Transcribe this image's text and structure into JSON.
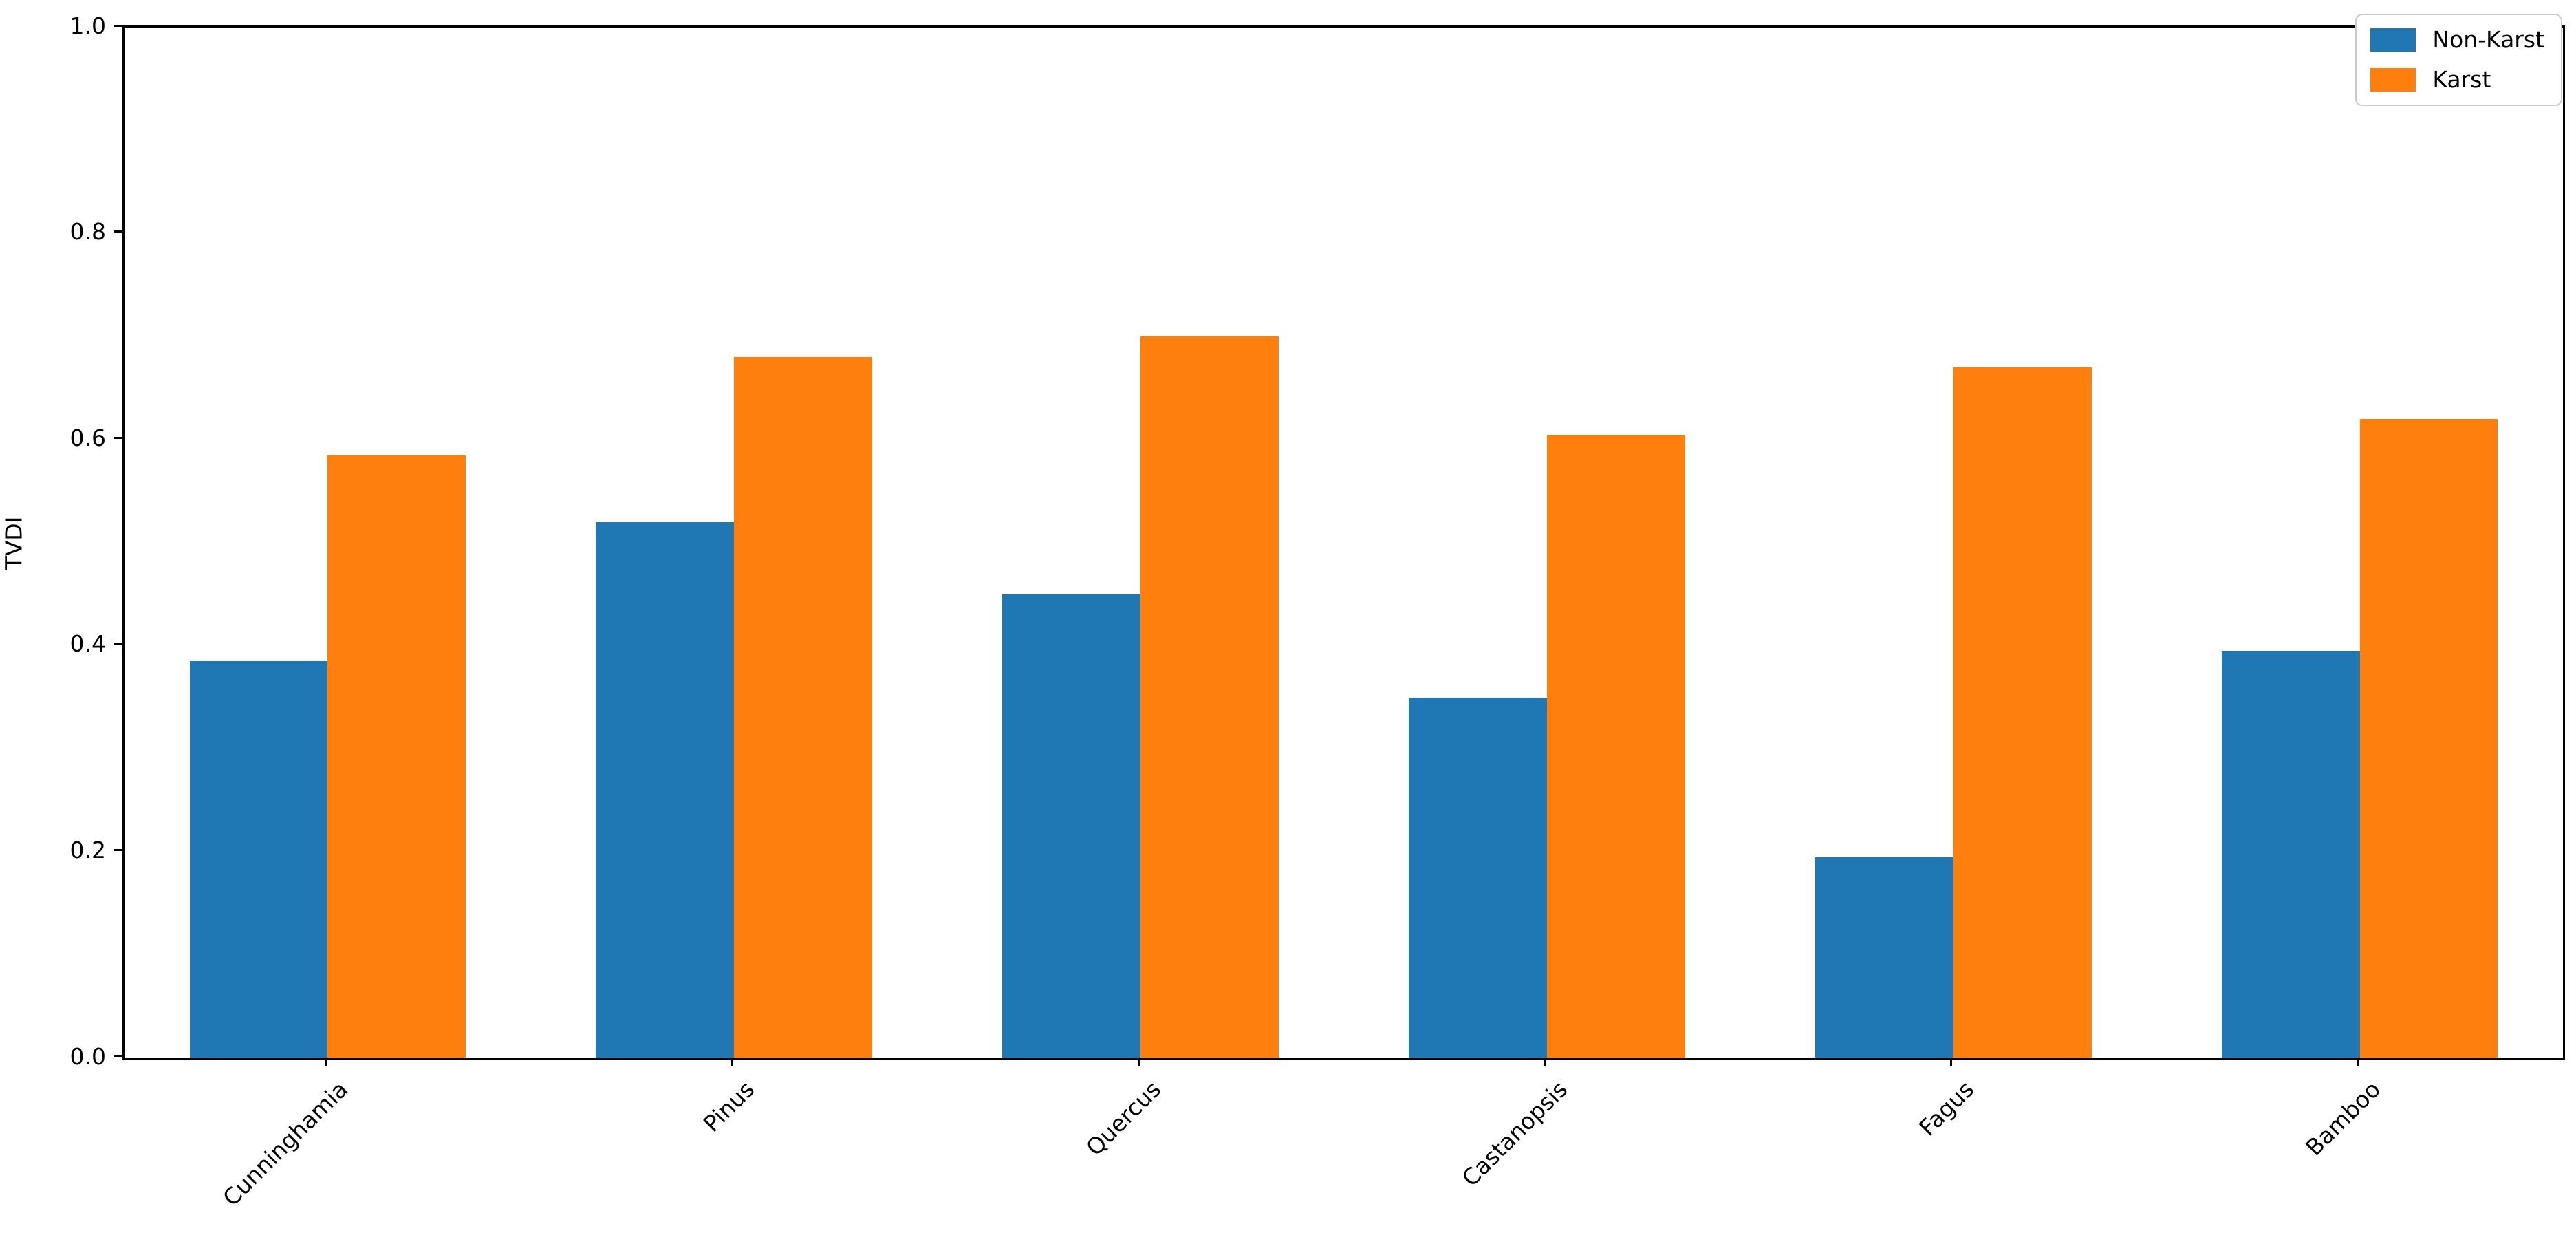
{
  "chart_data": {
    "type": "bar",
    "title": "",
    "categories": [
      "Cunninghamia",
      "Pinus",
      "Quercus",
      "Castanopsis",
      "Fagus",
      "Bamboo"
    ],
    "series": [
      {
        "name": "Non-Karst",
        "color": "#1f77b4",
        "values": [
          0.385,
          0.52,
          0.45,
          0.35,
          0.195,
          0.395
        ]
      },
      {
        "name": "Karst",
        "color": "#ff7f0e",
        "values": [
          0.585,
          0.68,
          0.7,
          0.605,
          0.67,
          0.62
        ]
      }
    ],
    "xlabel": "",
    "ylabel": "TVDI",
    "ylim": [
      0.0,
      1.0
    ],
    "yticks": [
      0.0,
      0.2,
      0.4,
      0.6,
      0.8,
      1.0
    ],
    "ytick_labels": [
      "0.0",
      "0.2",
      "0.4",
      "0.6",
      "0.8",
      "1.0"
    ],
    "x_tick_rotation": 45,
    "grid": false,
    "legend_position": "upper right",
    "bar_group_fraction": 0.68,
    "spine_color": "#000000",
    "background_color": "#ffffff"
  }
}
